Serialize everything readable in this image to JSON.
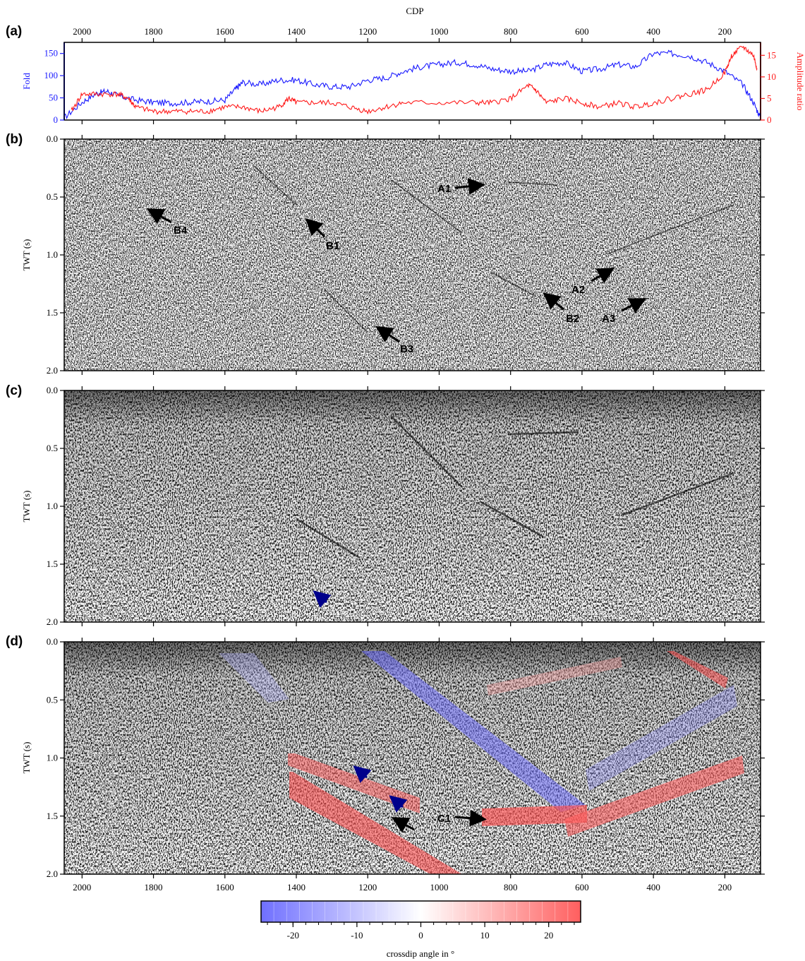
{
  "figure": {
    "top_axis_title": "CDP",
    "panel_letters": [
      "(a)",
      "(b)",
      "(c)",
      "(d)"
    ],
    "cdp_ticks": [
      "2000",
      "1800",
      "1600",
      "1400",
      "1200",
      "1000",
      "800",
      "600",
      "400",
      "200"
    ],
    "twt_ticks": [
      "0.0",
      "0.5",
      "1.0",
      "1.5",
      "2.0"
    ],
    "twt_label": "TWT (s)"
  },
  "panel_a": {
    "fold_label": "Fold",
    "fold_color": "#1a1aff",
    "fold_ticks": [
      "0",
      "50",
      "100",
      "150"
    ],
    "amp_label": "Amplitude ratio",
    "amp_color": "#ff1a1a",
    "amp_ticks": [
      "0",
      "5",
      "10",
      "15"
    ]
  },
  "chart_data": [
    {
      "type": "line",
      "xlabel": "CDP",
      "xlim": [
        2050,
        100
      ],
      "series": [
        {
          "name": "Fold",
          "axis": "left",
          "ylim": [
            0,
            175
          ],
          "x": [
            2050,
            2000,
            1960,
            1930,
            1900,
            1850,
            1800,
            1750,
            1700,
            1650,
            1600,
            1570,
            1550,
            1500,
            1450,
            1400,
            1350,
            1300,
            1250,
            1200,
            1150,
            1100,
            1050,
            1000,
            950,
            900,
            850,
            800,
            750,
            700,
            650,
            600,
            550,
            500,
            450,
            400,
            350,
            300,
            250,
            200,
            150,
            120,
            100
          ],
          "values": [
            5,
            40,
            60,
            65,
            55,
            45,
            40,
            38,
            40,
            42,
            45,
            70,
            85,
            80,
            90,
            90,
            80,
            75,
            75,
            90,
            95,
            110,
            120,
            125,
            130,
            125,
            115,
            110,
            110,
            125,
            130,
            110,
            115,
            125,
            120,
            150,
            150,
            145,
            130,
            110,
            80,
            40,
            5
          ]
        },
        {
          "name": "Amplitude ratio",
          "axis": "right",
          "ylim": [
            0,
            18
          ],
          "x": [
            2030,
            2000,
            1950,
            1900,
            1870,
            1850,
            1800,
            1750,
            1700,
            1650,
            1600,
            1550,
            1500,
            1450,
            1420,
            1400,
            1350,
            1300,
            1250,
            1200,
            1150,
            1100,
            1000,
            900,
            850,
            800,
            750,
            730,
            700,
            650,
            600,
            550,
            500,
            450,
            400,
            350,
            300,
            250,
            200,
            180,
            150,
            120,
            110
          ],
          "values": [
            2,
            6,
            6,
            6,
            5,
            3,
            2,
            2,
            2,
            2,
            3,
            3,
            2,
            3,
            5,
            4,
            4,
            4,
            3,
            2,
            3,
            4,
            4,
            4,
            4,
            5,
            8,
            7,
            4,
            5,
            4,
            3,
            4,
            3,
            4,
            5,
            6,
            7,
            11,
            15,
            17,
            15,
            12
          ]
        }
      ]
    }
  ],
  "panel_b": {
    "annotations": [
      "A1",
      "A2",
      "A3",
      "B1",
      "B2",
      "B3",
      "B4"
    ]
  },
  "panel_d": {
    "annotations": [
      "C1"
    ]
  },
  "colorbar": {
    "ticks": [
      "-20",
      "-10",
      "0",
      "10",
      "20"
    ],
    "label": "crossdip angle in °",
    "min": -25,
    "max": 25,
    "neg_color": "#6f6fff",
    "pos_color": "#ff5f5f"
  }
}
